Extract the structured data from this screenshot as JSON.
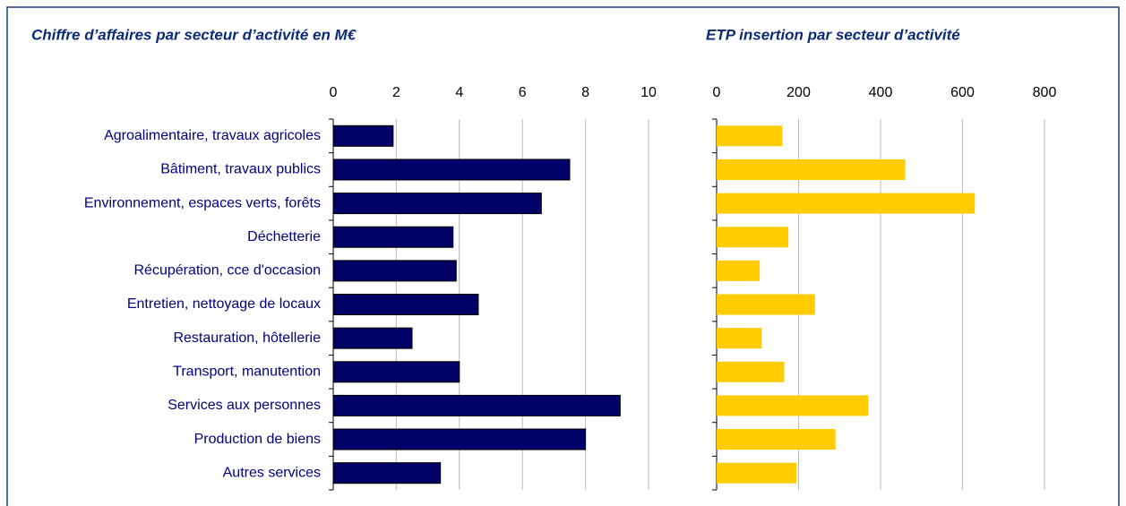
{
  "chart_data": [
    {
      "type": "bar",
      "orientation": "horizontal",
      "title": "Chiffre d’affaires par secteur d’activité en M€",
      "categories": [
        "Agroalimentaire, travaux agricoles",
        "Bâtiment, travaux publics",
        "Environnement, espaces verts, forêts",
        "Déchetterie",
        "Récupération, cce d'occasion",
        "Entretien, nettoyage de locaux",
        "Restauration, hôtellerie",
        "Transport, manutention",
        "Services aux personnes",
        "Production de biens",
        "Autres services"
      ],
      "values": [
        1.9,
        7.5,
        6.6,
        3.8,
        3.9,
        4.6,
        2.5,
        4.0,
        9.1,
        8.0,
        3.4
      ],
      "color": "#000066",
      "xlim": [
        0,
        10
      ],
      "xticks": [
        0,
        2,
        4,
        6,
        8,
        10
      ],
      "grid": true
    },
    {
      "type": "bar",
      "orientation": "horizontal",
      "title": "ETP insertion par secteur d’activité",
      "values": [
        160,
        460,
        630,
        175,
        105,
        240,
        110,
        165,
        370,
        290,
        195
      ],
      "color": "#ffcc00",
      "xlim": [
        0,
        800
      ],
      "xticks": [
        0,
        200,
        400,
        600,
        800
      ],
      "grid": true
    }
  ]
}
